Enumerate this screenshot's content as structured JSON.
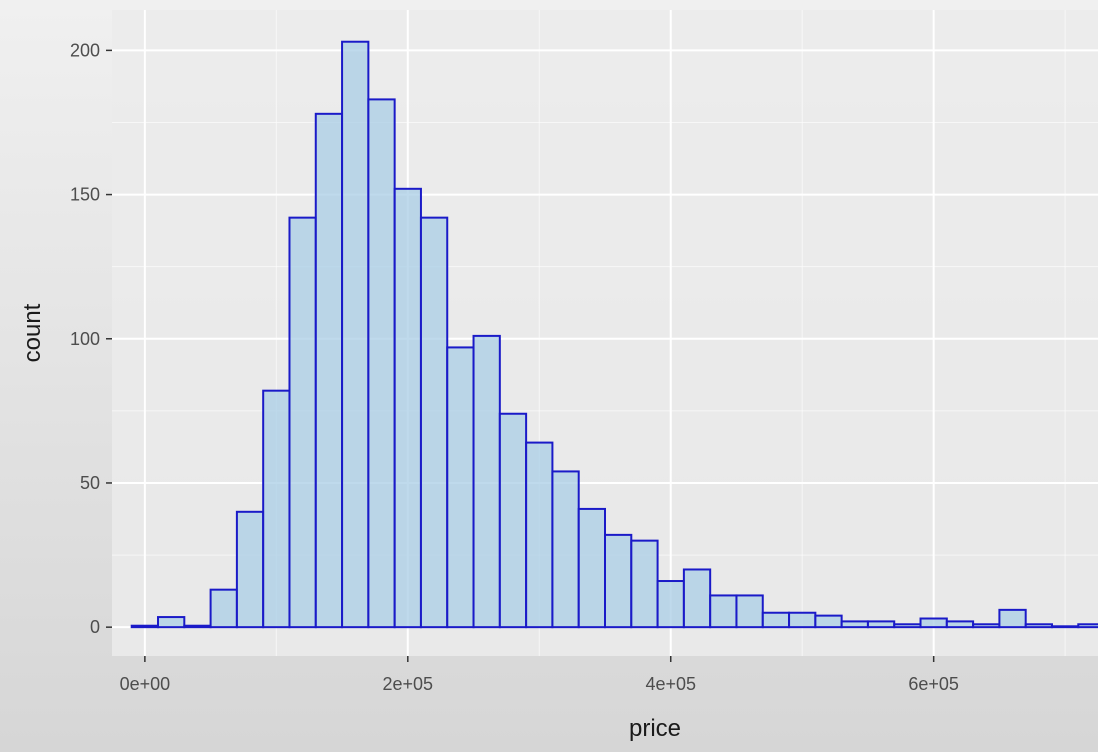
{
  "chart_data": {
    "type": "bar",
    "title": "",
    "xlabel": "price",
    "ylabel": "count",
    "xlim": [
      -25000,
      725000
    ],
    "ylim": [
      -10,
      214
    ],
    "x_ticks": [
      0,
      200000,
      400000,
      600000
    ],
    "x_tick_labels": [
      "0e+00",
      "2e+05",
      "4e+05",
      "6e+05"
    ],
    "y_ticks": [
      0,
      50,
      100,
      150,
      200
    ],
    "y_tick_labels": [
      "0",
      "50",
      "100",
      "150",
      "200"
    ],
    "grid": true,
    "colors": {
      "fill": "#a9cde6",
      "stroke": "#1a1ac8",
      "panel": "#ebebeb",
      "grid": "#ffffff"
    },
    "bins": [
      {
        "x0": -10000,
        "x1": 10000,
        "count": 0.5
      },
      {
        "x0": 10000,
        "x1": 30000,
        "count": 3.5
      },
      {
        "x0": 30000,
        "x1": 50000,
        "count": 0.5
      },
      {
        "x0": 50000,
        "x1": 70000,
        "count": 13
      },
      {
        "x0": 70000,
        "x1": 90000,
        "count": 40
      },
      {
        "x0": 90000,
        "x1": 110000,
        "count": 82
      },
      {
        "x0": 110000,
        "x1": 130000,
        "count": 142
      },
      {
        "x0": 130000,
        "x1": 150000,
        "count": 178
      },
      {
        "x0": 150000,
        "x1": 170000,
        "count": 203
      },
      {
        "x0": 170000,
        "x1": 190000,
        "count": 183
      },
      {
        "x0": 190000,
        "x1": 210000,
        "count": 152
      },
      {
        "x0": 210000,
        "x1": 230000,
        "count": 142
      },
      {
        "x0": 230000,
        "x1": 250000,
        "count": 97
      },
      {
        "x0": 250000,
        "x1": 270000,
        "count": 101
      },
      {
        "x0": 270000,
        "x1": 290000,
        "count": 74
      },
      {
        "x0": 290000,
        "x1": 310000,
        "count": 64
      },
      {
        "x0": 310000,
        "x1": 330000,
        "count": 54
      },
      {
        "x0": 330000,
        "x1": 350000,
        "count": 41
      },
      {
        "x0": 350000,
        "x1": 370000,
        "count": 32
      },
      {
        "x0": 370000,
        "x1": 390000,
        "count": 30
      },
      {
        "x0": 390000,
        "x1": 410000,
        "count": 16
      },
      {
        "x0": 410000,
        "x1": 430000,
        "count": 20
      },
      {
        "x0": 430000,
        "x1": 450000,
        "count": 11
      },
      {
        "x0": 450000,
        "x1": 470000,
        "count": 11
      },
      {
        "x0": 470000,
        "x1": 490000,
        "count": 5
      },
      {
        "x0": 490000,
        "x1": 510000,
        "count": 5
      },
      {
        "x0": 510000,
        "x1": 530000,
        "count": 4
      },
      {
        "x0": 530000,
        "x1": 550000,
        "count": 2
      },
      {
        "x0": 550000,
        "x1": 570000,
        "count": 2
      },
      {
        "x0": 570000,
        "x1": 590000,
        "count": 1
      },
      {
        "x0": 590000,
        "x1": 610000,
        "count": 3
      },
      {
        "x0": 610000,
        "x1": 630000,
        "count": 2
      },
      {
        "x0": 630000,
        "x1": 650000,
        "count": 1
      },
      {
        "x0": 650000,
        "x1": 670000,
        "count": 6
      },
      {
        "x0": 670000,
        "x1": 690000,
        "count": 1
      },
      {
        "x0": 690000,
        "x1": 710000,
        "count": 0.3
      },
      {
        "x0": 710000,
        "x1": 730000,
        "count": 1
      }
    ]
  }
}
